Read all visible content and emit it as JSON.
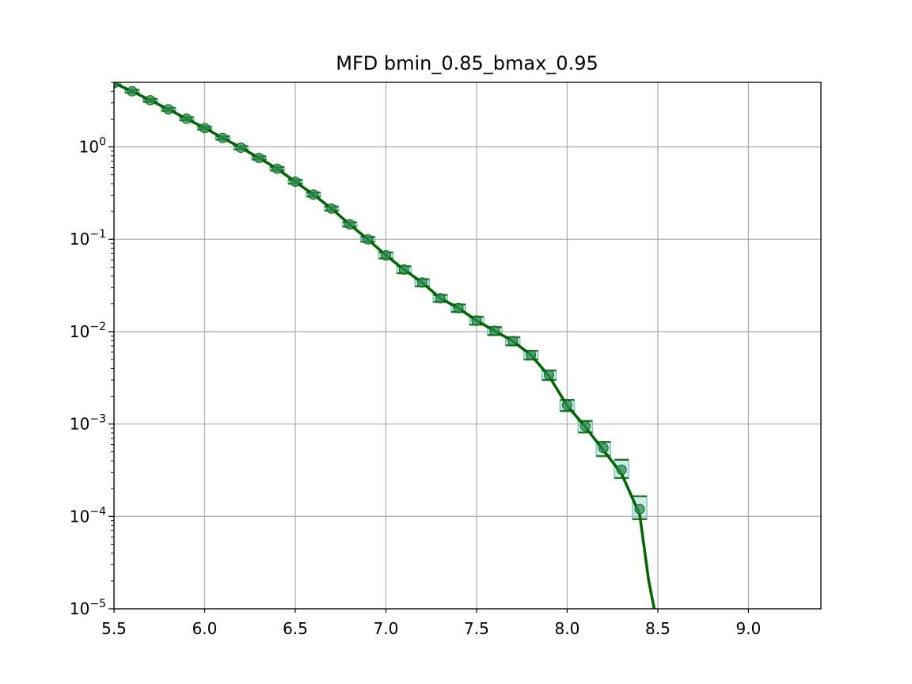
{
  "chart_data": {
    "type": "line",
    "title": "MFD bmin_0.85_bmax_0.95",
    "xlabel": "",
    "ylabel": "",
    "xlim": [
      5.5,
      9.4
    ],
    "ylim": [
      1e-05,
      5
    ],
    "yscale": "log",
    "grid": true,
    "x_ticks": [
      {
        "value": 5.5,
        "label": "5.5"
      },
      {
        "value": 6.0,
        "label": "6.0"
      },
      {
        "value": 6.5,
        "label": "6.5"
      },
      {
        "value": 7.0,
        "label": "7.0"
      },
      {
        "value": 7.5,
        "label": "7.5"
      },
      {
        "value": 8.0,
        "label": "8.0"
      },
      {
        "value": 8.5,
        "label": "8.5"
      },
      {
        "value": 9.0,
        "label": "9.0"
      }
    ],
    "y_ticks": [
      {
        "value": 1,
        "base": "10",
        "exp": "0"
      },
      {
        "value": 0.1,
        "base": "10",
        "exp": "−1"
      },
      {
        "value": 0.01,
        "base": "10",
        "exp": "−2"
      },
      {
        "value": 0.001,
        "base": "10",
        "exp": "−3"
      },
      {
        "value": 0.0001,
        "base": "10",
        "exp": "−4"
      },
      {
        "value": 1e-05,
        "base": "10",
        "exp": "−5"
      }
    ],
    "line_color": "#006400",
    "marker_color": "#2e8b57",
    "error_color": "#7fc6c6",
    "line": {
      "x": [
        5.5,
        5.6,
        5.7,
        5.8,
        5.9,
        6.0,
        6.1,
        6.2,
        6.3,
        6.4,
        6.5,
        6.6,
        6.7,
        6.8,
        6.9,
        7.0,
        7.1,
        7.2,
        7.3,
        7.4,
        7.5,
        7.6,
        7.7,
        7.8,
        7.9,
        8.0,
        8.1,
        8.2,
        8.3,
        8.4,
        8.45,
        8.49
      ],
      "y": [
        4.9,
        4.0,
        3.2,
        2.55,
        2.02,
        1.6,
        1.25,
        0.98,
        0.76,
        0.58,
        0.42,
        0.305,
        0.215,
        0.145,
        0.1,
        0.067,
        0.047,
        0.034,
        0.023,
        0.018,
        0.0132,
        0.0102,
        0.0079,
        0.0056,
        0.0033,
        0.00158,
        0.00093,
        0.00052,
        0.00029,
        0.000105,
        2e-05,
        8e-06
      ]
    },
    "observed": {
      "x": [
        5.5,
        5.6,
        5.7,
        5.8,
        5.9,
        6.0,
        6.1,
        6.2,
        6.3,
        6.4,
        6.5,
        6.6,
        6.7,
        6.8,
        6.9,
        7.0,
        7.1,
        7.2,
        7.3,
        7.4,
        7.5,
        7.6,
        7.7,
        7.8,
        7.9,
        8.0,
        8.1,
        8.2,
        8.3,
        8.4
      ],
      "y": [
        4.9,
        4.0,
        3.2,
        2.55,
        2.02,
        1.6,
        1.25,
        0.98,
        0.76,
        0.58,
        0.42,
        0.305,
        0.215,
        0.145,
        0.1,
        0.067,
        0.047,
        0.034,
        0.023,
        0.018,
        0.0132,
        0.0102,
        0.0079,
        0.0056,
        0.0034,
        0.0016,
        0.00095,
        0.00055,
        0.00032,
        0.00012
      ],
      "err_low": [
        4.7,
        3.85,
        3.08,
        2.45,
        1.94,
        1.54,
        1.2,
        0.94,
        0.73,
        0.555,
        0.4,
        0.29,
        0.204,
        0.137,
        0.094,
        0.062,
        0.043,
        0.031,
        0.021,
        0.0163,
        0.0119,
        0.0092,
        0.0071,
        0.005,
        0.003,
        0.00138,
        0.00081,
        0.00045,
        0.00026,
        9.35e-05
      ],
      "err_high": [
        5.1,
        4.15,
        3.32,
        2.65,
        2.1,
        1.66,
        1.3,
        1.02,
        0.79,
        0.605,
        0.44,
        0.32,
        0.226,
        0.153,
        0.106,
        0.072,
        0.051,
        0.037,
        0.025,
        0.0197,
        0.0145,
        0.0112,
        0.0087,
        0.0062,
        0.0038,
        0.00182,
        0.00108,
        0.00064,
        0.00041,
        0.000165
      ]
    }
  }
}
